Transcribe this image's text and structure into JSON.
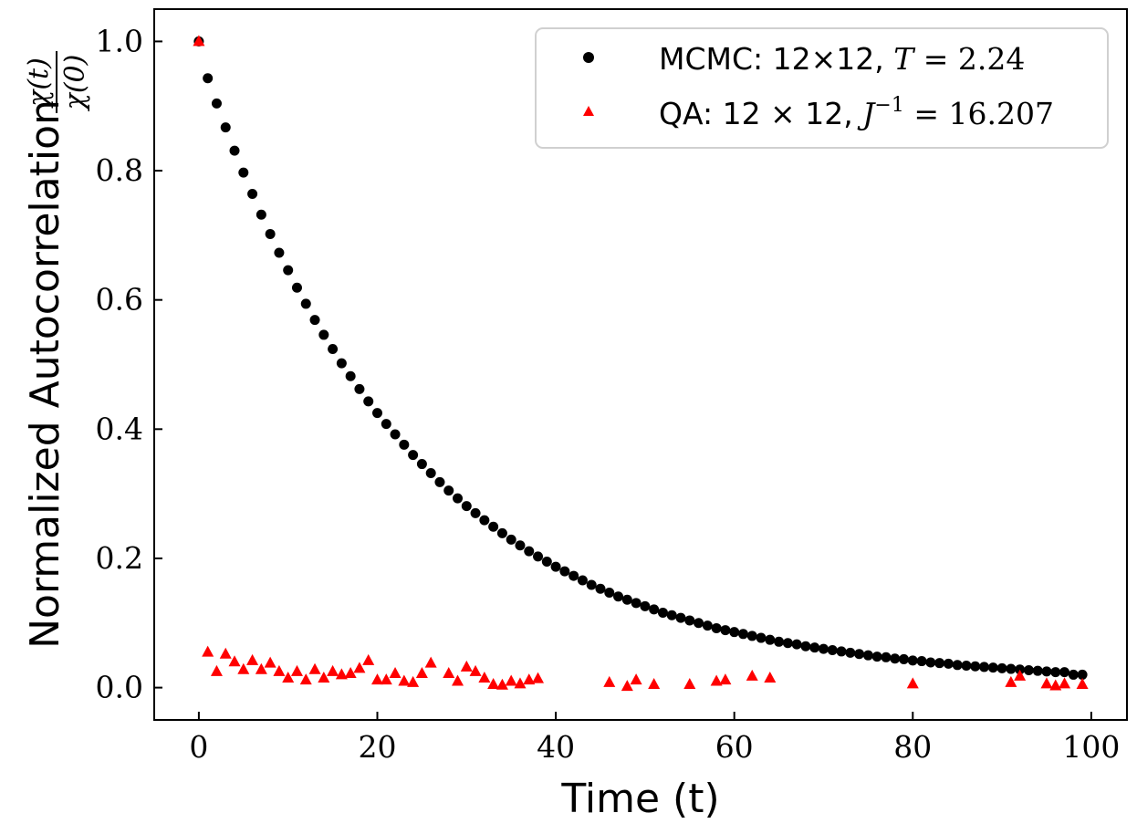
{
  "chart_data": {
    "type": "scatter",
    "title": "",
    "xlabel": "Time (t)",
    "ylabel": "Normalized Autocorrelation",
    "ylabel_fraction": {
      "numerator": "χ(t)",
      "denominator": "χ(0)"
    },
    "xlim": [
      -5,
      104
    ],
    "ylim": [
      -0.05,
      1.05
    ],
    "xticks": [
      0,
      20,
      40,
      60,
      80,
      100
    ],
    "xtick_labels": [
      "0",
      "20",
      "40",
      "60",
      "80",
      "100"
    ],
    "yticks": [
      0.0,
      0.2,
      0.4,
      0.6,
      0.8,
      1.0
    ],
    "ytick_labels": [
      "0.0",
      "0.2",
      "0.4",
      "0.6",
      "0.8",
      "1.0"
    ],
    "grid": false,
    "legend_position": "top-right",
    "series": [
      {
        "name": "MCMC",
        "legend_label": "MCMC: 12×12, T = 2.24",
        "marker": "circle",
        "color": "#000000",
        "x": [
          0,
          1,
          2,
          3,
          4,
          5,
          6,
          7,
          8,
          9,
          10,
          11,
          12,
          13,
          14,
          15,
          16,
          17,
          18,
          19,
          20,
          21,
          22,
          23,
          24,
          25,
          26,
          27,
          28,
          29,
          30,
          31,
          32,
          33,
          34,
          35,
          36,
          37,
          38,
          39,
          40,
          41,
          42,
          43,
          44,
          45,
          46,
          47,
          48,
          49,
          50,
          51,
          52,
          53,
          54,
          55,
          56,
          57,
          58,
          59,
          60,
          61,
          62,
          63,
          64,
          65,
          66,
          67,
          68,
          69,
          70,
          71,
          72,
          73,
          74,
          75,
          76,
          77,
          78,
          79,
          80,
          81,
          82,
          83,
          84,
          85,
          86,
          87,
          88,
          89,
          90,
          91,
          92,
          93,
          94,
          95,
          96,
          97,
          98,
          99
        ],
        "y": [
          1.0,
          0.943,
          0.904,
          0.867,
          0.831,
          0.797,
          0.764,
          0.732,
          0.702,
          0.673,
          0.646,
          0.619,
          0.594,
          0.569,
          0.546,
          0.524,
          0.502,
          0.482,
          0.462,
          0.443,
          0.425,
          0.408,
          0.392,
          0.376,
          0.36,
          0.346,
          0.332,
          0.318,
          0.305,
          0.293,
          0.281,
          0.27,
          0.259,
          0.249,
          0.239,
          0.229,
          0.22,
          0.211,
          0.203,
          0.195,
          0.187,
          0.18,
          0.173,
          0.166,
          0.159,
          0.153,
          0.147,
          0.141,
          0.136,
          0.131,
          0.126,
          0.121,
          0.116,
          0.112,
          0.108,
          0.104,
          0.1,
          0.096,
          0.092,
          0.089,
          0.086,
          0.083,
          0.08,
          0.077,
          0.074,
          0.071,
          0.069,
          0.067,
          0.064,
          0.062,
          0.06,
          0.058,
          0.056,
          0.054,
          0.052,
          0.05,
          0.048,
          0.047,
          0.045,
          0.044,
          0.042,
          0.041,
          0.039,
          0.038,
          0.037,
          0.035,
          0.034,
          0.033,
          0.032,
          0.031,
          0.03,
          0.029,
          0.028,
          0.027,
          0.026,
          0.025,
          0.024,
          0.024,
          0.02,
          0.02
        ]
      },
      {
        "name": "QA",
        "legend_label": "QA: 12 × 12, J⁻¹ = 16.207",
        "marker": "triangle",
        "color": "#ff0000",
        "x": [
          0,
          1,
          2,
          3,
          4,
          5,
          6,
          7,
          8,
          9,
          10,
          11,
          12,
          13,
          14,
          15,
          16,
          17,
          18,
          19,
          20,
          21,
          22,
          23,
          24,
          25,
          26,
          28,
          29,
          30,
          31,
          32,
          33,
          34,
          35,
          36,
          37,
          38,
          46,
          48,
          49,
          51,
          55,
          58,
          59,
          62,
          64,
          80,
          91,
          92,
          95,
          96,
          97,
          99
        ],
        "y": [
          1.0,
          0.055,
          0.025,
          0.052,
          0.04,
          0.028,
          0.042,
          0.028,
          0.038,
          0.025,
          0.015,
          0.025,
          0.012,
          0.028,
          0.015,
          0.025,
          0.02,
          0.022,
          0.03,
          0.042,
          0.012,
          0.012,
          0.022,
          0.01,
          0.008,
          0.022,
          0.038,
          0.022,
          0.01,
          0.032,
          0.025,
          0.015,
          0.005,
          0.004,
          0.01,
          0.006,
          0.012,
          0.014,
          0.008,
          0.002,
          0.012,
          0.005,
          0.005,
          0.01,
          0.012,
          0.018,
          0.015,
          0.006,
          0.008,
          0.018,
          0.006,
          0.003,
          0.006,
          0.005
        ]
      }
    ]
  },
  "legend": {
    "mcmc": {
      "prefix": "MCMC: 12×12, ",
      "var": "T",
      "rest": " = 2.24"
    },
    "qa": {
      "prefix": "QA: 12 × 12, ",
      "var": "J",
      "sup": "−1",
      "rest": " = 16.207"
    }
  }
}
